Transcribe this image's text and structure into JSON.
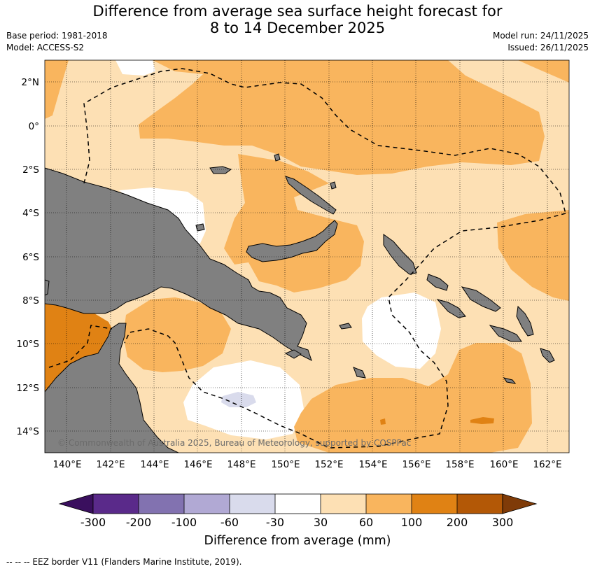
{
  "title": {
    "line1": "Difference from average sea surface height forecast for",
    "line2": "8 to 14 December 2025"
  },
  "meta": {
    "base_period": "Base period: 1981-2018",
    "model": "Model: ACCESS-S2",
    "model_run": "Model run: 24/11/2025",
    "issued": "Issued: 26/11/2025"
  },
  "map": {
    "lat_labels": [
      "2°N",
      "0°",
      "2°S",
      "4°S",
      "6°S",
      "8°S",
      "10°S",
      "12°S",
      "14°S"
    ],
    "lon_labels": [
      "140°E",
      "142°E",
      "144°E",
      "146°E",
      "148°E",
      "150°E",
      "152°E",
      "154°E",
      "156°E",
      "158°E",
      "160°E",
      "162°E"
    ],
    "copyright": "© Commonwealth of Australia 2025, Bureau of Meteorology, supported by COSPPac",
    "land_color": "#808080"
  },
  "colorbar": {
    "title": "Difference from average (mm)",
    "tick_labels": [
      "-300",
      "-200",
      "-100",
      "-60",
      "-30",
      "30",
      "60",
      "100",
      "200",
      "300"
    ],
    "colors": [
      "#3a0f5e",
      "#5a2a8a",
      "#8272b0",
      "#b1a9d4",
      "#d9dbec",
      "#ffffff",
      "#fde0b4",
      "#f9b55e",
      "#e08214",
      "#b35806",
      "#7f3b08"
    ]
  },
  "footer": {
    "legend_text": "--  --  -- EEZ border V11 (Flanders Marine Institute, 2019)."
  }
}
